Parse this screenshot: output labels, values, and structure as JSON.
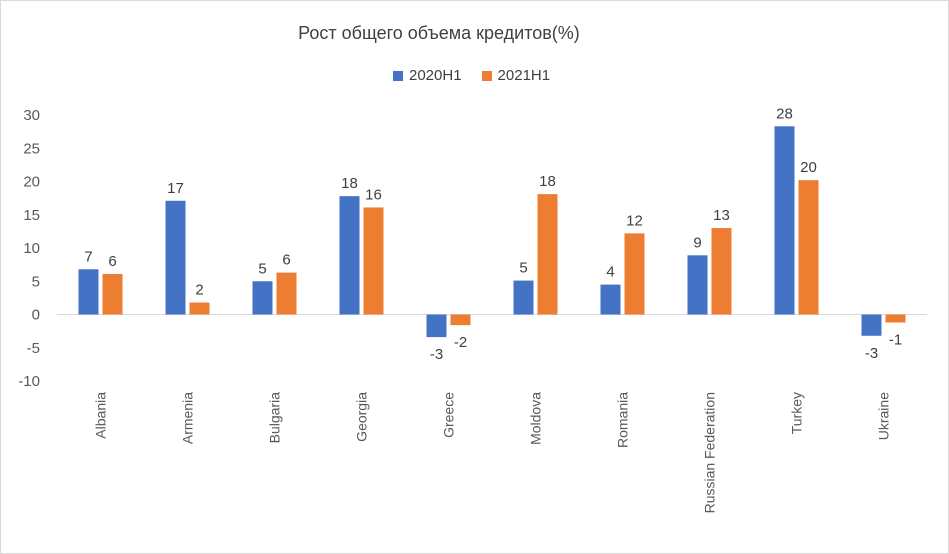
{
  "chart_data": {
    "type": "bar",
    "title": "Рост общего объема кредитов(%)",
    "categories": [
      "Albania",
      "Armenia",
      "Bulgaria",
      "Georgia",
      "Greece",
      "Moldova",
      "Romania",
      "Russian Federation",
      "Turkey",
      "Ukraine"
    ],
    "series": [
      {
        "name": "2020H1",
        "color": "#4472C4",
        "values": [
          6.8,
          17.1,
          5.0,
          17.8,
          -3.4,
          5.1,
          4.5,
          8.9,
          28.3,
          -3.2
        ],
        "labels": [
          "7",
          "17",
          "5",
          "18",
          "-3",
          "5",
          "4",
          "9",
          "28",
          "-3"
        ]
      },
      {
        "name": "2021H1",
        "color": "#ED7D31",
        "values": [
          6.1,
          1.8,
          6.3,
          16.1,
          -1.6,
          18.1,
          12.2,
          13.0,
          20.2,
          -1.2
        ],
        "labels": [
          "6",
          "2",
          "6",
          "16",
          "-2",
          "18",
          "12",
          "13",
          "20",
          "-1"
        ]
      }
    ],
    "yticks": [
      "30",
      "25",
      "20",
      "15",
      "10",
      "5",
      "0",
      "-5",
      "-10"
    ],
    "ylim": [
      -10,
      30
    ],
    "xlabel": "",
    "ylabel": "",
    "grid": false,
    "legend": "top"
  }
}
